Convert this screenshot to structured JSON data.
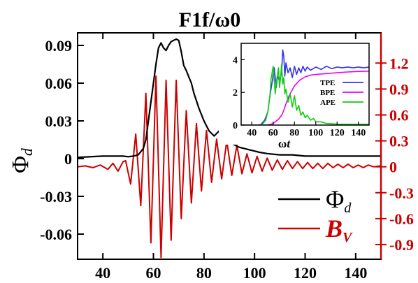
{
  "chart_data": {
    "type": "line",
    "title": "F1f/ω0",
    "xlim": [
      30,
      150
    ],
    "xticks": [
      40,
      60,
      80,
      100,
      120,
      140
    ],
    "left_axis": {
      "label": "Φd",
      "ylim": [
        -0.08,
        0.1
      ],
      "ticks": [
        -0.06,
        -0.03,
        0,
        0.03,
        0.06,
        0.09
      ],
      "tick_labels": [
        "-0.06",
        "-0.03",
        "0",
        "0.03",
        "0.06",
        "0.09"
      ],
      "color": "#000000"
    },
    "right_axis": {
      "ylim": [
        -1.07,
        1.55
      ],
      "ticks": [
        -0.9,
        -0.6,
        -0.3,
        0,
        0.3,
        0.6,
        0.9,
        1.2
      ],
      "tick_labels": [
        "-0.9",
        "-0.6",
        "-0.3",
        "0",
        "0.3",
        "0.6",
        "0.9",
        "1.2"
      ],
      "color": "#cc0000"
    },
    "series": [
      {
        "name": "Φd",
        "axis": "left",
        "color": "#000000",
        "x": [
          30,
          40,
          45,
          48,
          50,
          52,
          54,
          56,
          57,
          58,
          59,
          60,
          61,
          62,
          63,
          64,
          65,
          66,
          67,
          68,
          69,
          70,
          71,
          72,
          73,
          74,
          75,
          76,
          78,
          80,
          82,
          84,
          85,
          86,
          87,
          88,
          90,
          92,
          94,
          96,
          98,
          100,
          102,
          105,
          110,
          115,
          120,
          130,
          140,
          150
        ],
        "y": [
          0.001,
          0.002,
          0.002,
          0.002,
          0.0015,
          0.002,
          0.003,
          0.008,
          0.015,
          0.03,
          0.045,
          0.06,
          0.075,
          0.088,
          0.092,
          0.088,
          0.086,
          0.09,
          0.093,
          0.094,
          0.095,
          0.094,
          0.085,
          0.074,
          0.07,
          0.065,
          0.06,
          0.052,
          0.04,
          0.03,
          0.022,
          0.018,
          0.02,
          0.022,
          0.019,
          0.016,
          0.013,
          0.011,
          0.009,
          0.008,
          0.007,
          0.006,
          0.005,
          0.004,
          0.003,
          0.003,
          0.002,
          0.002,
          0.002,
          0.002
        ]
      },
      {
        "name": "B_V",
        "axis": "right",
        "color": "#cc0000",
        "x": [
          30,
          33,
          36,
          39,
          42,
          44,
          46,
          48,
          49,
          51,
          53,
          55,
          57,
          59,
          61,
          63,
          65,
          67,
          69,
          71,
          73,
          75,
          77,
          79,
          81,
          83,
          85,
          87,
          89,
          91,
          93,
          95,
          97,
          99,
          101,
          103,
          105,
          107,
          109,
          111,
          113,
          115,
          117,
          119,
          121,
          123,
          125,
          127,
          129,
          131,
          133,
          135,
          137,
          139,
          141,
          143,
          145,
          147,
          150
        ],
        "y": [
          0,
          0.01,
          -0.01,
          0.02,
          -0.03,
          0.04,
          -0.05,
          0.06,
          0.07,
          -0.2,
          0.38,
          -0.45,
          0.85,
          -0.88,
          1.05,
          -1.05,
          1.0,
          -0.85,
          1.0,
          -0.6,
          0.65,
          -0.42,
          0.5,
          -0.28,
          0.42,
          -0.18,
          0.32,
          -0.14,
          0.3,
          -0.1,
          0.25,
          -0.08,
          0.15,
          -0.07,
          0.12,
          -0.05,
          0.1,
          -0.04,
          0.08,
          -0.03,
          0.07,
          -0.02,
          0.06,
          -0.02,
          0.05,
          -0.02,
          0.04,
          -0.02,
          0.04,
          -0.01,
          0.03,
          -0.01,
          0.03,
          -0.01,
          0.02,
          -0.01,
          0.02,
          0,
          0.01
        ]
      }
    ],
    "legend": {
      "placement": "bottom-right",
      "entries": [
        {
          "label": "Φ",
          "sub": "d",
          "color": "#000000"
        },
        {
          "label": "B",
          "sub": "V",
          "color": "#cc0000"
        }
      ]
    },
    "inset": {
      "xlabel": "ωt",
      "xlim": [
        30,
        150
      ],
      "ylim": [
        0,
        5
      ],
      "xticks": [
        40,
        60,
        80,
        100,
        120,
        140
      ],
      "yticks": [
        0,
        2,
        4
      ],
      "series": [
        {
          "name": "TPE",
          "color": "#3333ee",
          "x": [
            30,
            40,
            48,
            52,
            55,
            57,
            59,
            61,
            63,
            64,
            66,
            68,
            69,
            70,
            71,
            72,
            74,
            76,
            78,
            80,
            82,
            84,
            86,
            88,
            90,
            92,
            95,
            100,
            105,
            110,
            115,
            120,
            125,
            130,
            135,
            140,
            145,
            150
          ],
          "y": [
            0,
            0,
            0,
            0.3,
            0.8,
            1.8,
            2.6,
            3.5,
            2.3,
            3.0,
            2.7,
            3.2,
            4.6,
            4.2,
            3.0,
            3.8,
            3.2,
            3.5,
            2.9,
            3.6,
            3.1,
            3.5,
            3.2,
            3.6,
            3.3,
            3.55,
            3.35,
            3.55,
            3.4,
            3.6,
            3.45,
            3.55,
            3.5,
            3.55,
            3.5,
            3.55,
            3.5,
            3.55
          ]
        },
        {
          "name": "BPE",
          "color": "#ee00ee",
          "x": [
            30,
            50,
            55,
            58,
            60,
            62,
            65,
            68,
            70,
            72,
            75,
            80,
            85,
            90,
            95,
            100,
            110,
            120,
            130,
            140,
            150
          ],
          "y": [
            0,
            0,
            0.02,
            0.05,
            0.1,
            0.2,
            0.35,
            0.6,
            0.9,
            1.3,
            1.8,
            2.4,
            2.75,
            2.95,
            3.05,
            3.1,
            3.15,
            3.2,
            3.25,
            3.28,
            3.3
          ]
        },
        {
          "name": "APE",
          "color": "#11cc11",
          "x": [
            30,
            45,
            50,
            53,
            55,
            57,
            58,
            60,
            62,
            63,
            65,
            66,
            67,
            68,
            69,
            70,
            71,
            72,
            74,
            76,
            78,
            80,
            82,
            84,
            86,
            88,
            90,
            92,
            95,
            98,
            100,
            105,
            110,
            115,
            120,
            130,
            140,
            150
          ],
          "y": [
            0,
            0,
            0.05,
            0.3,
            0.8,
            1.8,
            2.8,
            3.6,
            1.9,
            2.6,
            3.5,
            2.3,
            2.9,
            3.7,
            2.5,
            2.9,
            1.9,
            2.2,
            1.4,
            1.9,
            1.1,
            1.8,
            0.9,
            1.2,
            0.6,
            0.8,
            0.45,
            0.6,
            0.3,
            0.4,
            0.2,
            0.2,
            0.1,
            0.08,
            0.05,
            0.05,
            0.05,
            0.05
          ]
        }
      ]
    }
  }
}
